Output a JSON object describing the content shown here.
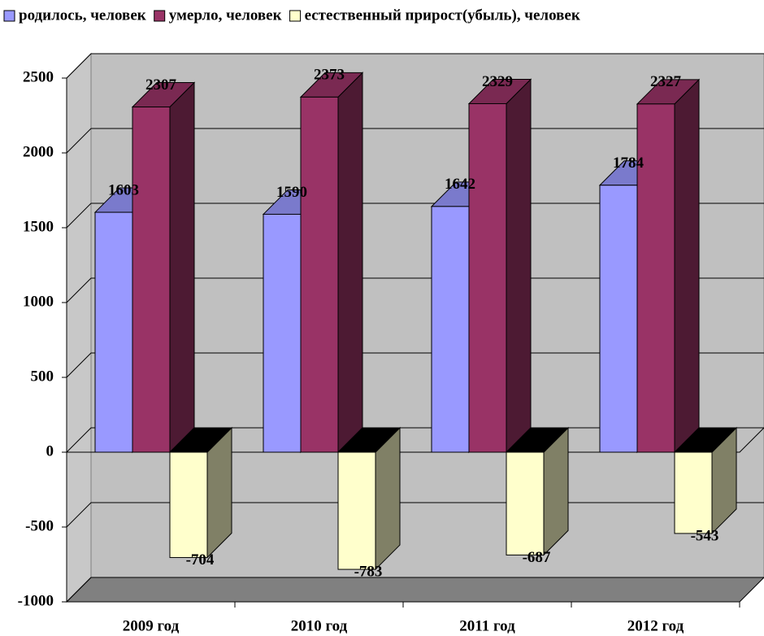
{
  "chart_data": {
    "type": "bar3d",
    "categories": [
      "2009 год",
      "2010 год",
      "2011 год",
      "2012 год"
    ],
    "series": [
      {
        "name": "родилось, человек",
        "color": "#9999ff",
        "values": [
          1603,
          1590,
          1642,
          1784
        ]
      },
      {
        "name": "умерло, человек",
        "color": "#993366",
        "values": [
          2307,
          2373,
          2329,
          2327
        ]
      },
      {
        "name": "естественный прирост(убыль), человек",
        "color": "#ffffcc",
        "values": [
          -704,
          -783,
          -687,
          -543
        ]
      }
    ],
    "ylim": [
      -1000,
      2500
    ],
    "yticks": [
      -1000,
      -500,
      0,
      500,
      1000,
      1500,
      2000,
      2500
    ],
    "grid": true,
    "legend": "top"
  }
}
